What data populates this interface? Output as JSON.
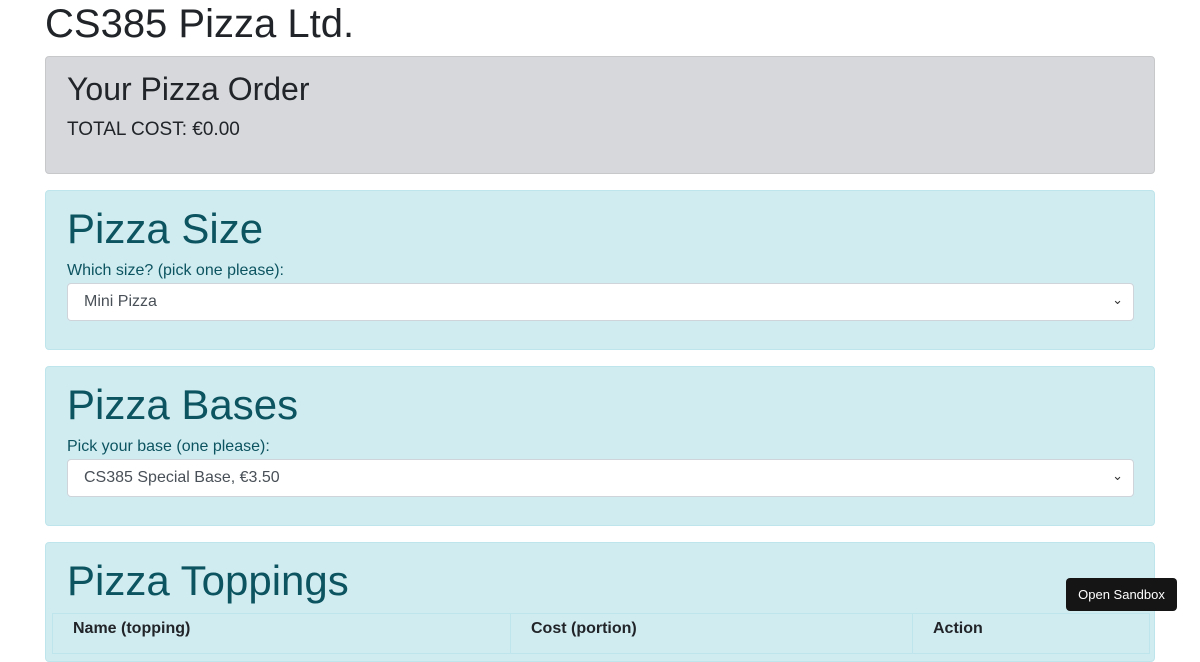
{
  "brand": "CS385 Pizza Ltd.",
  "order": {
    "title": "Your Pizza Order",
    "total_label": "TOTAL COST: €0.00"
  },
  "size": {
    "title": "Pizza Size",
    "label": "Which size? (pick one please):",
    "selected": "Mini Pizza"
  },
  "bases": {
    "title": "Pizza Bases",
    "label": "Pick your base (one please):",
    "selected": "CS385 Special Base, €3.50"
  },
  "toppings": {
    "title": "Pizza Toppings",
    "columns": [
      "Name (topping)",
      "Cost (portion)",
      "Action"
    ]
  },
  "sandbox_button": "Open Sandbox"
}
